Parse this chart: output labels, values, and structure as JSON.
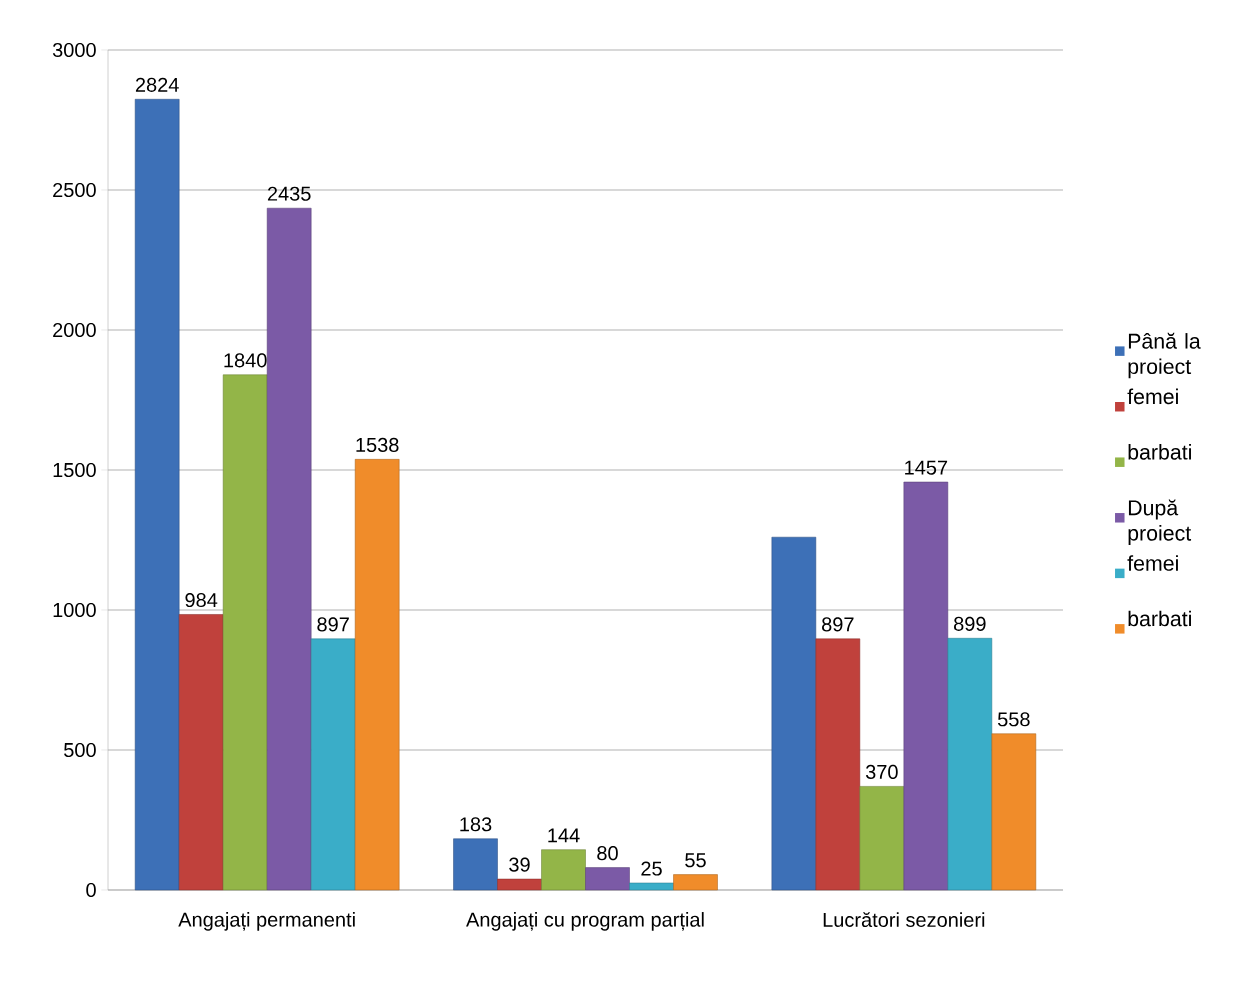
{
  "chart_data": {
    "type": "bar",
    "categories": [
      "Angajați permanenti",
      "Angajați cu program parțial",
      "Lucrători sezonieri"
    ],
    "series": [
      {
        "name": "Până la proiect",
        "color": "#3d70b7",
        "values": [
          2824,
          183,
          1260
        ],
        "value_labels": [
          "2824",
          "183",
          null
        ]
      },
      {
        "name": "femei",
        "color": "#c0413c",
        "values": [
          984,
          39,
          897
        ],
        "value_labels": [
          "984",
          "39",
          "897"
        ]
      },
      {
        "name": "barbati",
        "color": "#93b548",
        "values": [
          1840,
          144,
          370
        ],
        "value_labels": [
          "1840",
          "144",
          "370"
        ]
      },
      {
        "name": "După proiect",
        "color": "#7b5aa6",
        "values": [
          2435,
          80,
          1457
        ],
        "value_labels": [
          "2435",
          "80",
          "1457"
        ]
      },
      {
        "name": "femei",
        "color": "#3aadc8",
        "values": [
          897,
          25,
          899
        ],
        "value_labels": [
          "897",
          "25",
          "899"
        ]
      },
      {
        "name": "barbati",
        "color": "#f08c2a",
        "values": [
          1538,
          55,
          558
        ],
        "value_labels": [
          "1538",
          "55",
          "558"
        ]
      }
    ],
    "ylim": [
      0,
      3000
    ],
    "yticks": [
      0,
      500,
      1000,
      1500,
      2000,
      2500,
      3000
    ],
    "grid": "y",
    "legend": "right"
  }
}
